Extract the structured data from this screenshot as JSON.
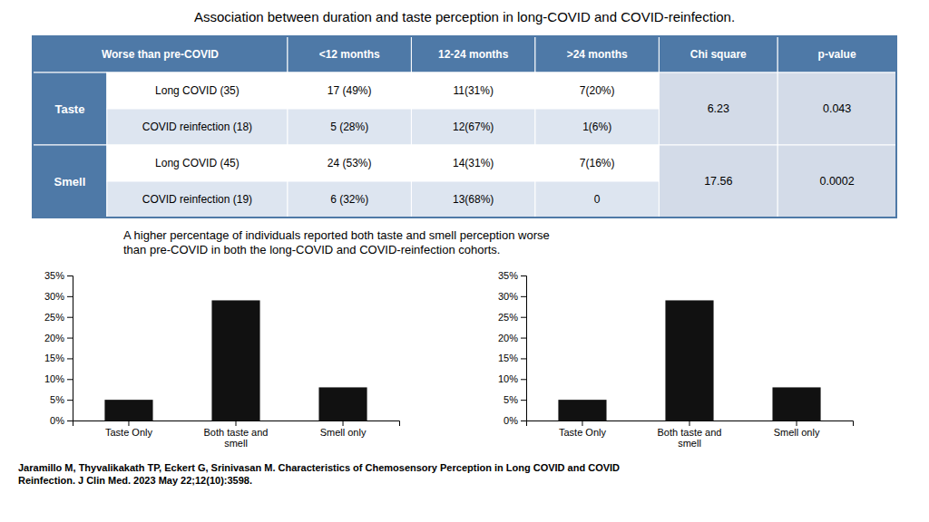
{
  "title": "Association between duration and taste perception in long-COVID and COVID-reinfection.",
  "subtitle": "A higher percentage of individuals reported both taste and smell perception worse\nthan pre-COVID in both the long-COVID and COVID-reinfection cohorts.",
  "annotations": [
    "Jaramillo M, Thyvalikakath TP, Eckert G, Srinivasan M. Characteristics of Chemosensory Perception in Long COVID and COVID\nReinfection. J Clin Med. 2023 May 22;12(10):3598."
  ],
  "chart_data": [
    {
      "type": "table",
      "columns": [
        "Worse than pre-COVID",
        "<12 months",
        "12-24 months",
        ">24 months",
        "Chi square",
        "p-value"
      ],
      "groups": [
        {
          "name": "Taste",
          "chi_square": "6.23",
          "p_value": "0.043",
          "rows": [
            [
              "Long COVID (35)",
              "17 (49%)",
              "11(31%)",
              "7(20%)"
            ],
            [
              "COVID reinfection (18)",
              "5 (28%)",
              "12(67%)",
              "1(6%)"
            ]
          ]
        },
        {
          "name": "Smell",
          "chi_square": "17.56",
          "p_value": "0.0002",
          "rows": [
            [
              "Long COVID (45)",
              "24 (53%)",
              "14(31%)",
              "7(16%)"
            ],
            [
              "COVID reinfection (19)",
              "6 (32%)",
              "13(68%)",
              "0"
            ]
          ]
        }
      ]
    },
    {
      "type": "bar",
      "categories": [
        "Taste Only",
        "Both taste and\nsmell",
        "Smell only"
      ],
      "values": [
        5,
        29,
        8
      ],
      "color": "#111111",
      "ylim": [
        0,
        35
      ],
      "yticks": [
        {
          "value": 0,
          "label": "0%"
        },
        {
          "value": 5,
          "label": "5%"
        },
        {
          "value": 10,
          "label": "10%"
        },
        {
          "value": 15,
          "label": "15%"
        },
        {
          "value": 20,
          "label": "20%"
        },
        {
          "value": 25,
          "label": "25%"
        },
        {
          "value": 30,
          "label": "30%"
        },
        {
          "value": 35,
          "label": "35%"
        }
      ]
    },
    {
      "type": "bar",
      "categories": [
        "Taste Only",
        "Both taste and\nsmell",
        "Smell only"
      ],
      "values": [
        5,
        29,
        8
      ],
      "color": "#111111",
      "ylim": [
        0,
        35
      ],
      "yticks": [
        {
          "value": 0,
          "label": "0%"
        },
        {
          "value": 5,
          "label": "5%"
        },
        {
          "value": 10,
          "label": "10%"
        },
        {
          "value": 15,
          "label": "15%"
        },
        {
          "value": 20,
          "label": "20%"
        },
        {
          "value": 25,
          "label": "25%"
        },
        {
          "value": 30,
          "label": "30%"
        },
        {
          "value": 35,
          "label": "35%"
        }
      ]
    }
  ]
}
